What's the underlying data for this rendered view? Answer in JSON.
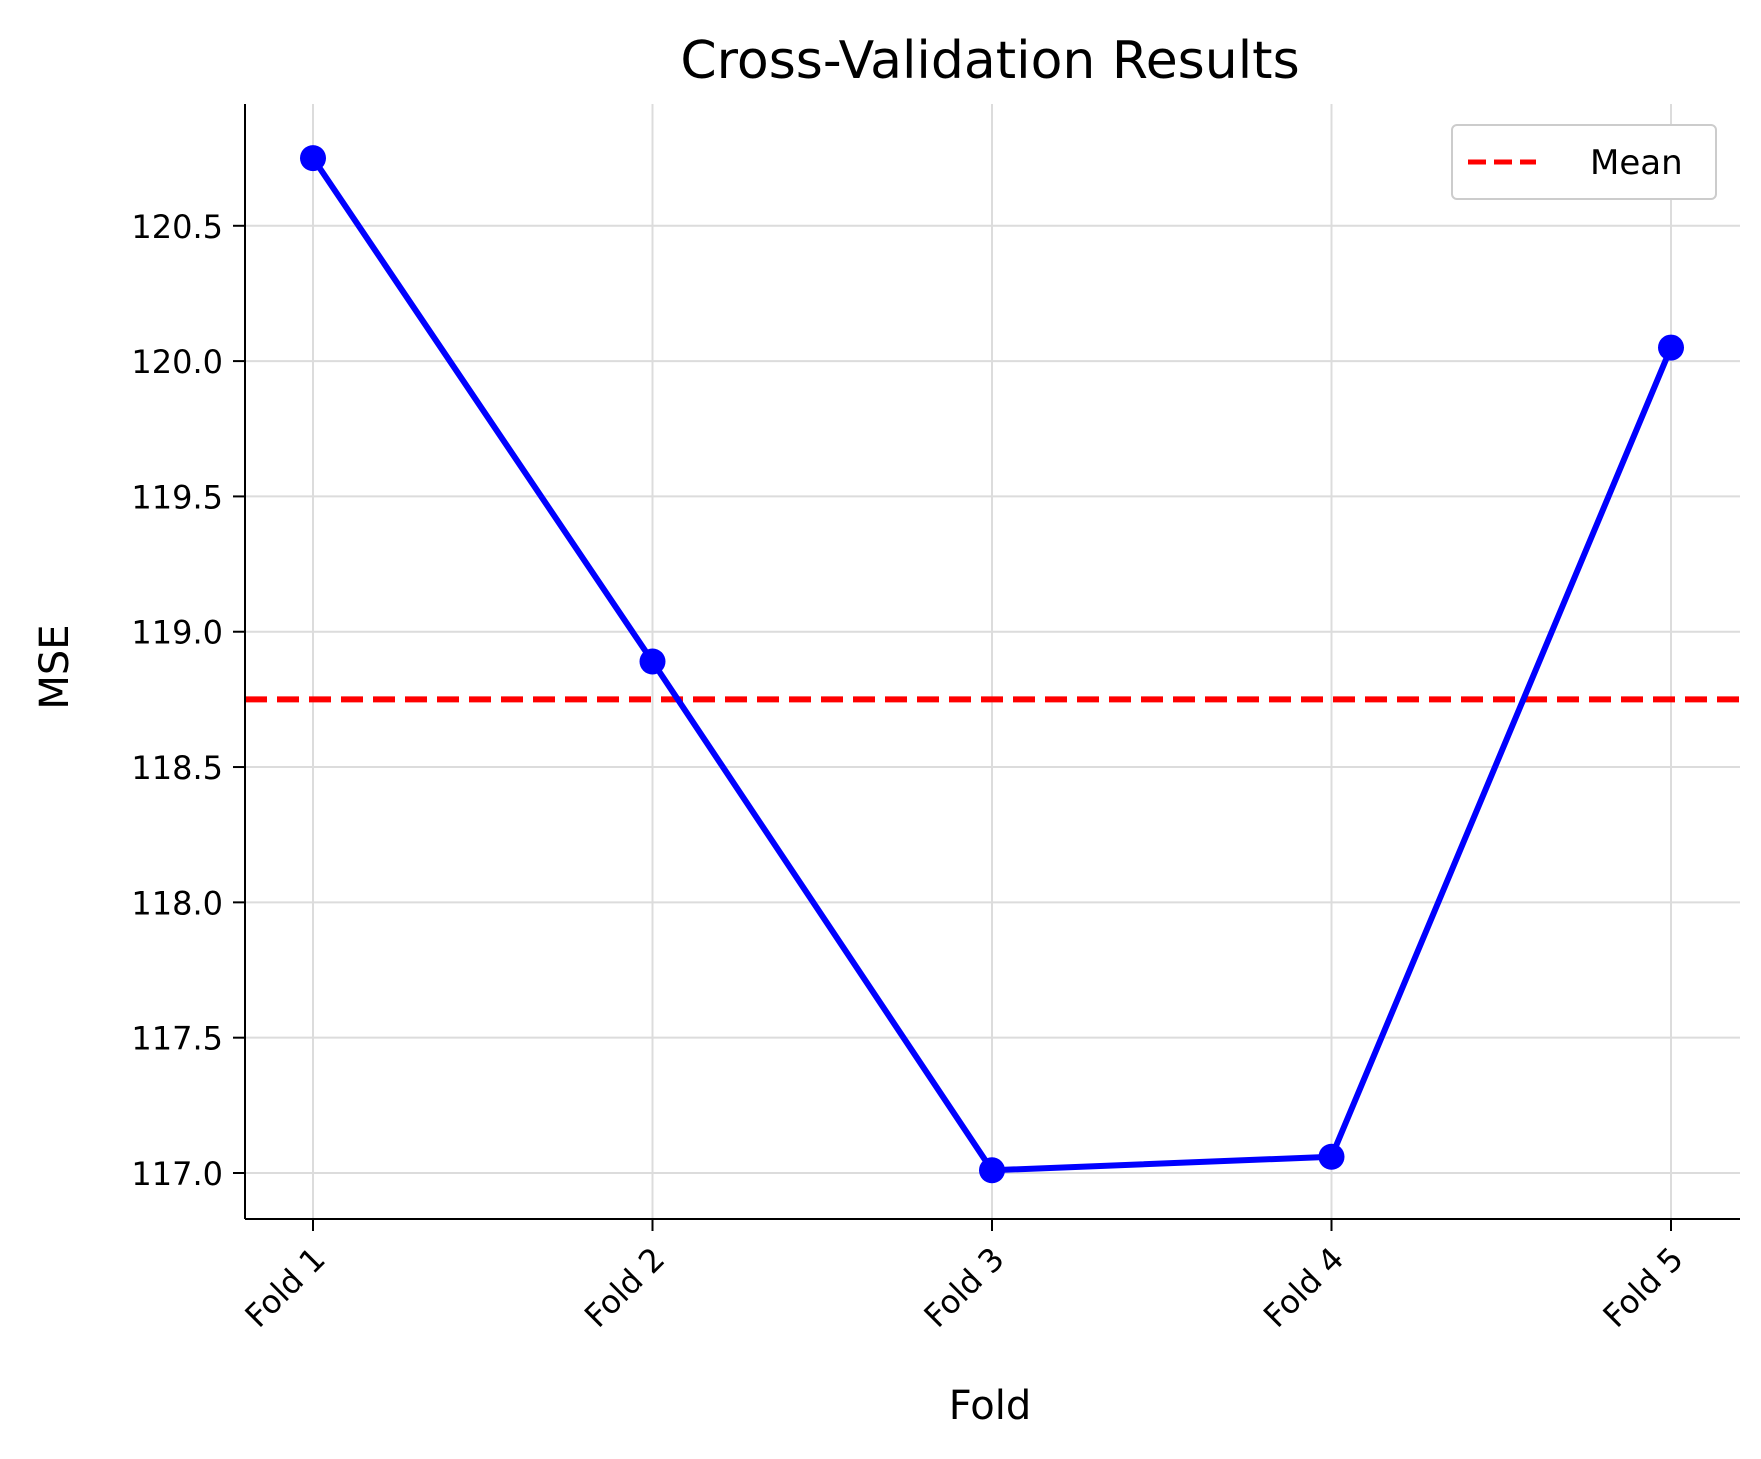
{
  "chart_data": {
    "type": "line",
    "title": "Cross-Validation Results",
    "xlabel": "Fold",
    "ylabel": "MSE",
    "categories": [
      "Fold 1",
      "Fold 2",
      "Fold 3",
      "Fold 4",
      "Fold 5"
    ],
    "series": [
      {
        "values": [
          120.75,
          118.89,
          117.01,
          117.06,
          120.05
        ],
        "color": "#0000ff",
        "marker": "circle"
      }
    ],
    "reference_lines": [
      {
        "name": "Mean",
        "value": 118.75,
        "color": "#ff0000",
        "style": "dashed"
      }
    ],
    "yticks": [
      117.0,
      117.5,
      118.0,
      118.5,
      119.0,
      119.5,
      120.0,
      120.5
    ],
    "ytick_labels": [
      "117.0",
      "117.5",
      "118.0",
      "118.5",
      "119.0",
      "119.5",
      "120.0",
      "120.5"
    ],
    "ylim": [
      116.83,
      120.95
    ],
    "xtick_rotation_deg": 45,
    "grid": true,
    "legend": {
      "placement": "top-right",
      "entries": [
        "Mean"
      ]
    }
  }
}
